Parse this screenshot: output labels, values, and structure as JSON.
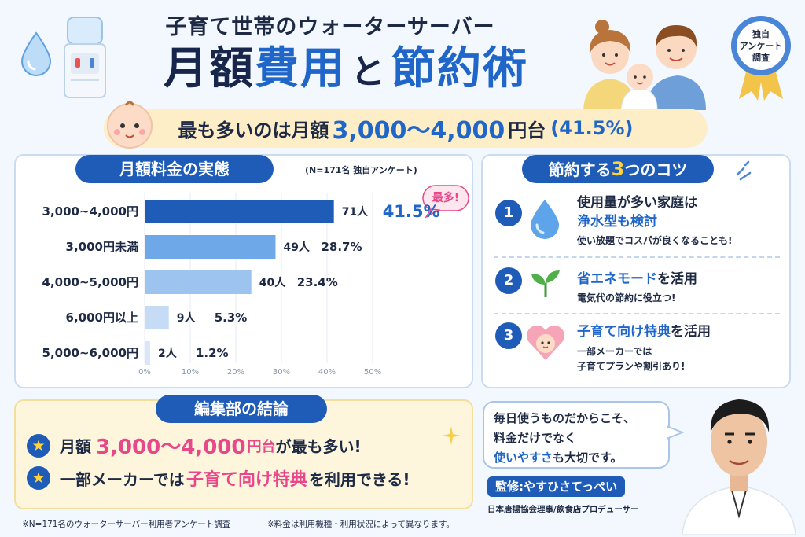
{
  "header": {
    "subtitle": "子育て世帯のウォーターサーバー",
    "title_part1": "月額",
    "title_part2": "費用",
    "title_part3": "と",
    "title_part4": "節約術",
    "badge_line1": "独自",
    "badge_line2": "アンケート",
    "badge_line3": "調査"
  },
  "highlight": {
    "prefix": "最も多いのは月額",
    "amount": "3,000～4,000",
    "suffix": "円台",
    "percent": "(41.5%)"
  },
  "chart_section": {
    "title": "月額料金の実態",
    "note": "(N=171名 独自アンケート)",
    "callout": "最多!"
  },
  "chart_data": {
    "type": "bar",
    "orientation": "horizontal",
    "categories": [
      "3,000~4,000円",
      "3,000円未満",
      "4,000~5,000円",
      "6,000円以上",
      "5,000~6,000円"
    ],
    "counts": [
      "71人",
      "49人",
      "40人",
      "9人",
      "2人"
    ],
    "values": [
      41.5,
      28.7,
      23.4,
      5.3,
      1.2
    ],
    "value_labels": [
      "41.5%",
      "28.7%",
      "23.4%",
      "5.3%",
      "1.2%"
    ],
    "xlim": [
      0,
      50
    ],
    "xticks": [
      "0%",
      "10%",
      "20%",
      "30%",
      "40%",
      "50%"
    ],
    "grid": true,
    "colors": [
      "#1f5cb8",
      "#6ea8e8",
      "#9cc4ef",
      "#c6dcf6",
      "#d9e7f8"
    ]
  },
  "tips": {
    "title_a": "節約する",
    "title_num": "3",
    "title_b": "つのコツ",
    "items": [
      {
        "num": "1",
        "title_line1": "使用量が多い家庭は",
        "title_line2": "浄水型も検討",
        "desc": "使い放題でコスパが良くなることも!",
        "icon": "water-drop-icon"
      },
      {
        "num": "2",
        "title_hl": "省エネモード",
        "title_rest": "を活用",
        "desc": "電気代の節約に役立つ!",
        "icon": "sprout-icon"
      },
      {
        "num": "3",
        "title_hl": "子育て向け特典",
        "title_rest": "を活用",
        "desc_line1": "一部メーカーでは",
        "desc_line2": "子育てプランや割引あり!",
        "icon": "baby-heart-icon"
      }
    ]
  },
  "conclusion": {
    "title": "編集部の結論",
    "row1_a": "月額",
    "row1_hl": "3,000～4,000",
    "row1_unit": "円台",
    "row1_b": "が最も多い!",
    "row2_a": "一部メーカーでは",
    "row2_hl": "子育て向け特典",
    "row2_b": "を利用できる!"
  },
  "speech": {
    "line1": "毎日使うものだからこそ、",
    "line2": "料金だけでなく",
    "line3_hl": "使いやすさ",
    "line3_b": "も大切です。"
  },
  "supervisor": {
    "name": "監修:やすひさてっぺい",
    "role": "日本唐揚協会理事/飲食店プロデューサー"
  },
  "footnotes": {
    "left": "※N=171名のウォーターサーバー利用者アンケート調査",
    "right": "※料金は利用機種・利用状況によって異なります。"
  },
  "colors": {
    "brand_blue": "#1f5cb8",
    "accent_blue": "#1f66c8",
    "accent_pink": "#e8488a",
    "banner_yellow": "#fdeec8"
  }
}
